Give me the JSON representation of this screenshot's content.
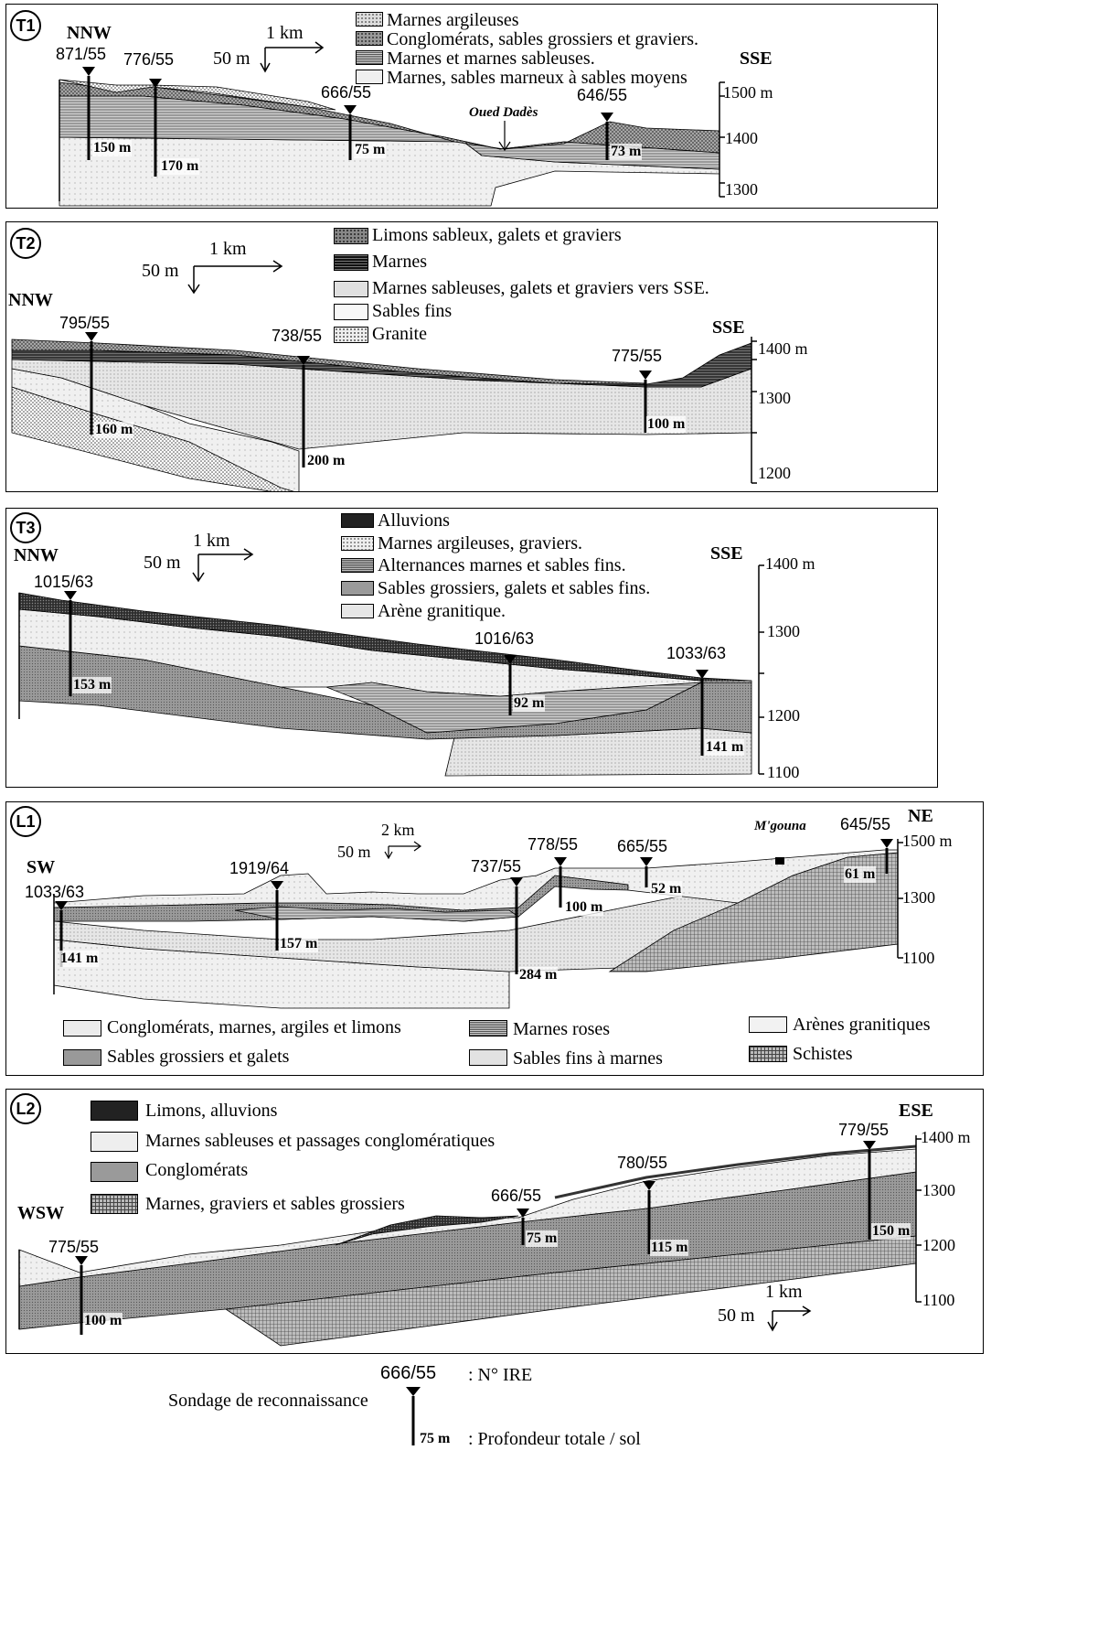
{
  "panels": [
    {
      "id": "T1",
      "directions": [
        "NNW",
        "SSE"
      ],
      "scale": {
        "h": "1 km",
        "v": "50 m"
      },
      "legend": [
        "Marnes argileuses",
        "Conglomérats, sables grossiers et graviers.",
        "Marnes et marnes sableuses.",
        "Marnes, sables marneux à sables moyens"
      ],
      "wells": [
        {
          "id": "871/55",
          "depth": "150 m"
        },
        {
          "id": "776/55",
          "depth": "170 m"
        },
        {
          "id": "666/55",
          "depth": "75 m"
        },
        {
          "id": "646/55",
          "depth": "73 m"
        }
      ],
      "place": "Oued Dadès",
      "elevations": [
        "1500 m",
        "1400",
        "1300"
      ]
    },
    {
      "id": "T2",
      "directions": [
        "NNW",
        "SSE"
      ],
      "scale": {
        "h": "1 km",
        "v": "50 m"
      },
      "legend": [
        "Limons sableux, galets et graviers",
        "Marnes",
        "Marnes sableuses, galets et graviers vers SSE.",
        "Sables fins",
        "Granite"
      ],
      "wells": [
        {
          "id": "795/55",
          "depth": "160 m"
        },
        {
          "id": "738/55",
          "depth": "200 m"
        },
        {
          "id": "775/55",
          "depth": "100 m"
        }
      ],
      "elevations": [
        "1400 m",
        "1300",
        "1200"
      ]
    },
    {
      "id": "T3",
      "directions": [
        "NNW",
        "SSE"
      ],
      "scale": {
        "h": "1 km",
        "v": "50 m"
      },
      "legend": [
        "Alluvions",
        "Marnes argileuses, graviers.",
        "Alternances marnes et sables fins.",
        "Sables grossiers, galets et sables fins.",
        "Arène granitique."
      ],
      "wells": [
        {
          "id": "1015/63",
          "depth": "153 m"
        },
        {
          "id": "1016/63",
          "depth": "92 m"
        },
        {
          "id": "1033/63",
          "depth": "141 m"
        }
      ],
      "elevations": [
        "1400 m",
        "1300",
        "1200",
        "1100"
      ]
    },
    {
      "id": "L1",
      "directions": [
        "SW",
        "NE"
      ],
      "scale": {
        "h": "2 km",
        "v": "50 m"
      },
      "legend": [
        "Conglomérats, marnes, argiles et limons",
        "Sables grossiers et galets",
        "Marnes roses",
        "Sables fins à marnes",
        "Arènes granitiques",
        "Schistes"
      ],
      "wells": [
        {
          "id": "1033/63",
          "depth": "141 m"
        },
        {
          "id": "1919/64",
          "depth": "157 m"
        },
        {
          "id": "737/55",
          "depth": "284 m"
        },
        {
          "id": "778/55",
          "depth": "100 m"
        },
        {
          "id": "665/55",
          "depth": "52 m"
        },
        {
          "id": "645/55",
          "depth": "61 m"
        }
      ],
      "place": "M'gouna",
      "elevations": [
        "1500 m",
        "1300",
        "1100"
      ]
    },
    {
      "id": "L2",
      "directions": [
        "WSW",
        "ESE"
      ],
      "scale": {
        "h": "1 km",
        "v": "50 m"
      },
      "legend": [
        "Limons, alluvions",
        "Marnes sableuses et passages conglomératiques",
        "Conglomérats",
        "Marnes, graviers et sables grossiers"
      ],
      "wells": [
        {
          "id": "775/55",
          "depth": "100 m"
        },
        {
          "id": "666/55",
          "depth": "75 m"
        },
        {
          "id": "780/55",
          "depth": "115 m"
        },
        {
          "id": "779/55",
          "depth": "150 m"
        }
      ],
      "elevations": [
        "1400 m",
        "1300",
        "1200",
        "1100"
      ]
    }
  ],
  "key": {
    "well_id": "666/55",
    "id_label": ": N° IRE",
    "caption": "Sondage de reconnaissance",
    "depth": "75 m",
    "depth_label": ": Profondeur totale / sol"
  }
}
